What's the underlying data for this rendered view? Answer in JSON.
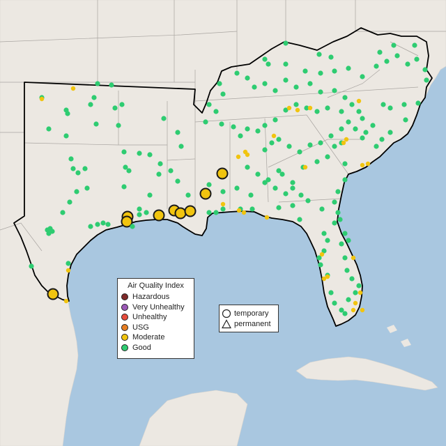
{
  "legend": {
    "title": "Air Quality Index",
    "categories": [
      {
        "label": "Hazardous",
        "color": "#7e2a2a"
      },
      {
        "label": "Very Unhealthy",
        "color": "#9b59b6"
      },
      {
        "label": "Unhealthy",
        "color": "#e74c3c"
      },
      {
        "label": "USG",
        "color": "#e67e22"
      },
      {
        "label": "Moderate",
        "color": "#f1c40f"
      },
      {
        "label": "Good",
        "color": "#2ecc71"
      }
    ]
  },
  "monitor_types": {
    "temporary": "temporary",
    "permanent": "permanent",
    "temporary_symbol": "circle",
    "permanent_symbol": "triangle"
  },
  "map": {
    "water_color": "#a9c7e0",
    "land_color": "#ece8e2",
    "boundary_color": "#000000"
  }
}
